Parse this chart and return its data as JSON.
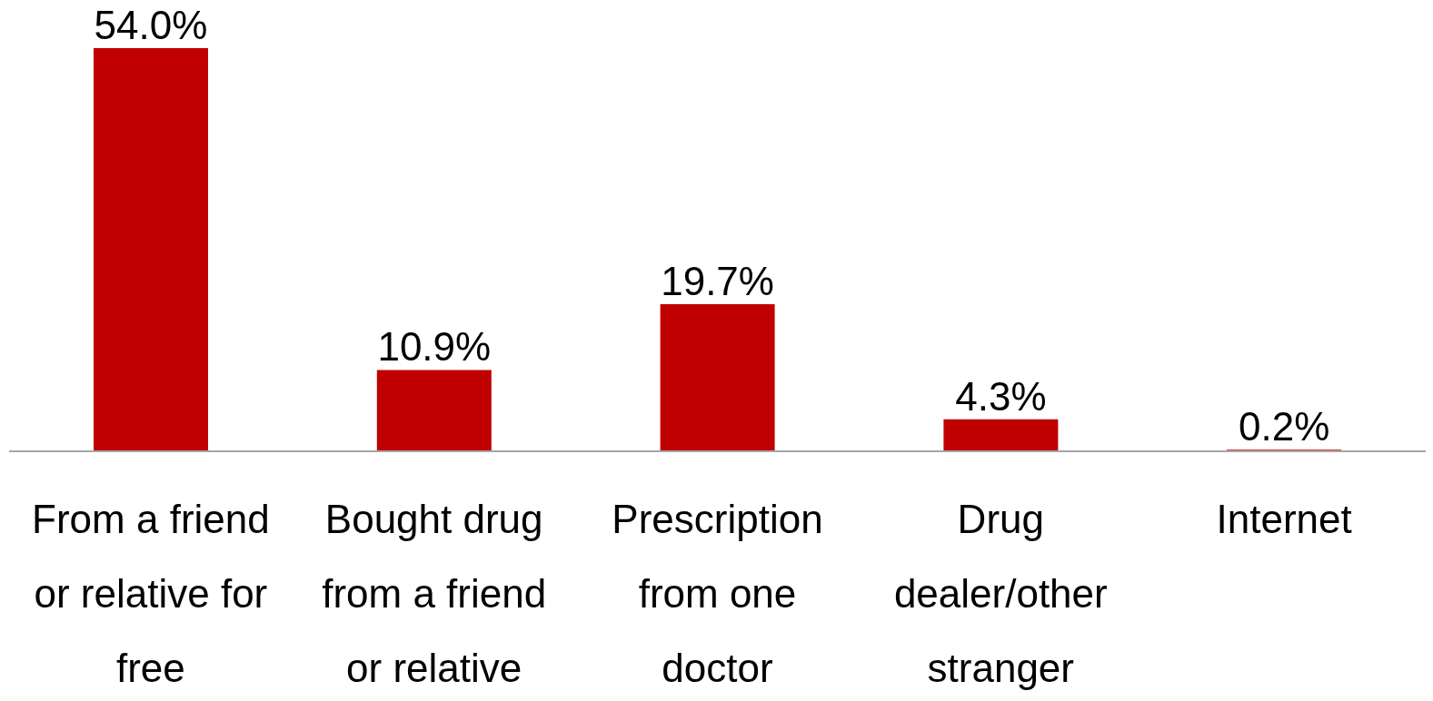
{
  "chart_data": {
    "type": "bar",
    "categories": [
      "From a friend or relative for free",
      "Bought drug from a friend or relative",
      "Prescription from one doctor",
      "Drug dealer/other stranger",
      "Internet"
    ],
    "values": [
      54.0,
      10.9,
      19.7,
      4.3,
      0.2
    ],
    "color": "#c00000",
    "value_labels": [
      "54.0%",
      "10.9%",
      "19.7%",
      "4.3%",
      "0.2%"
    ],
    "grid": false,
    "legend": false
  }
}
